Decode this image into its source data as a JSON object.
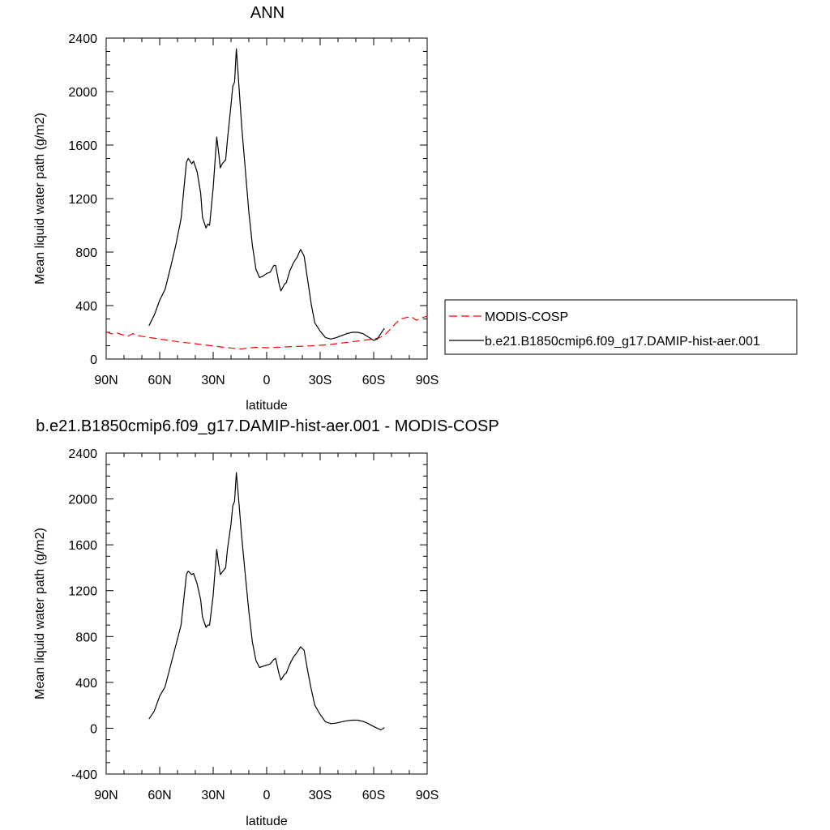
{
  "chart_data": [
    {
      "type": "line",
      "title": "ANN",
      "xlabel": "latitude",
      "ylabel": "Mean liquid water path (g/m2)",
      "xlim": [
        90,
        -90
      ],
      "ylim": [
        0,
        2400
      ],
      "xticks": [
        {
          "value": 90,
          "label": "90N"
        },
        {
          "value": 60,
          "label": "60N"
        },
        {
          "value": 30,
          "label": "30N"
        },
        {
          "value": 0,
          "label": "0"
        },
        {
          "value": -30,
          "label": "30S"
        },
        {
          "value": -60,
          "label": "60S"
        },
        {
          "value": -90,
          "label": "90S"
        }
      ],
      "yticks": [
        0,
        400,
        800,
        1200,
        1600,
        2000,
        2400
      ],
      "grid": false,
      "legend_position": "right",
      "series": [
        {
          "name": "MODIS-COSP",
          "color": "#ff0000",
          "dash": "dashed",
          "points": [
            [
              90,
              205
            ],
            [
              87,
              188
            ],
            [
              84,
              195
            ],
            [
              81,
              182
            ],
            [
              78,
              170
            ],
            [
              75,
              190
            ],
            [
              72,
              175
            ],
            [
              69,
              168
            ],
            [
              66,
              162
            ],
            [
              60,
              150
            ],
            [
              54,
              138
            ],
            [
              48,
              126
            ],
            [
              42,
              118
            ],
            [
              36,
              108
            ],
            [
              30,
              98
            ],
            [
              24,
              88
            ],
            [
              18,
              80
            ],
            [
              15,
              75
            ],
            [
              12,
              80
            ],
            [
              6,
              88
            ],
            [
              0,
              85
            ],
            [
              -6,
              88
            ],
            [
              -12,
              92
            ],
            [
              -18,
              95
            ],
            [
              -24,
              98
            ],
            [
              -30,
              103
            ],
            [
              -36,
              110
            ],
            [
              -42,
              120
            ],
            [
              -48,
              130
            ],
            [
              -54,
              140
            ],
            [
              -60,
              150
            ],
            [
              -63,
              158
            ],
            [
              -66,
              178
            ],
            [
              -69,
              218
            ],
            [
              -72,
              262
            ],
            [
              -75,
              300
            ],
            [
              -78,
              310
            ],
            [
              -81,
              318
            ],
            [
              -84,
              290
            ],
            [
              -87,
              310
            ],
            [
              -90,
              320
            ]
          ]
        },
        {
          "name": "b.e21.B1850cmip6.f09_g17.DAMIP-hist-aer.001",
          "color": "#000000",
          "dash": "solid",
          "points": [
            [
              66,
              250
            ],
            [
              63,
              330
            ],
            [
              60,
              440
            ],
            [
              57,
              520
            ],
            [
              54,
              680
            ],
            [
              51,
              850
            ],
            [
              48,
              1050
            ],
            [
              45,
              1470
            ],
            [
              44,
              1500
            ],
            [
              42,
              1460
            ],
            [
              41,
              1480
            ],
            [
              39,
              1400
            ],
            [
              37,
              1240
            ],
            [
              36,
              1060
            ],
            [
              34,
              980
            ],
            [
              33,
              1010
            ],
            [
              32,
              1000
            ],
            [
              30,
              1280
            ],
            [
              29,
              1470
            ],
            [
              28,
              1660
            ],
            [
              27,
              1550
            ],
            [
              26,
              1430
            ],
            [
              25,
              1460
            ],
            [
              23,
              1490
            ],
            [
              22,
              1640
            ],
            [
              20,
              1900
            ],
            [
              19,
              2040
            ],
            [
              18,
              2070
            ],
            [
              17,
              2320
            ],
            [
              16,
              2130
            ],
            [
              14,
              1740
            ],
            [
              12,
              1420
            ],
            [
              10,
              1100
            ],
            [
              8,
              850
            ],
            [
              6,
              670
            ],
            [
              4,
              610
            ],
            [
              2,
              620
            ],
            [
              0,
              640
            ],
            [
              -2,
              650
            ],
            [
              -4,
              700
            ],
            [
              -5,
              700
            ],
            [
              -7,
              560
            ],
            [
              -8,
              510
            ],
            [
              -10,
              560
            ],
            [
              -11,
              570
            ],
            [
              -13,
              660
            ],
            [
              -15,
              720
            ],
            [
              -17,
              760
            ],
            [
              -19,
              820
            ],
            [
              -21,
              770
            ],
            [
              -23,
              590
            ],
            [
              -25,
              410
            ],
            [
              -27,
              270
            ],
            [
              -30,
              210
            ],
            [
              -33,
              160
            ],
            [
              -36,
              150
            ],
            [
              -39,
              160
            ],
            [
              -42,
              175
            ],
            [
              -45,
              190
            ],
            [
              -48,
              200
            ],
            [
              -51,
              200
            ],
            [
              -54,
              190
            ],
            [
              -57,
              165
            ],
            [
              -60,
              140
            ],
            [
              -62,
              150
            ],
            [
              -64,
              190
            ],
            [
              -66,
              230
            ]
          ]
        }
      ]
    },
    {
      "type": "line",
      "title": "b.e21.B1850cmip6.f09_g17.DAMIP-hist-aer.001 - MODIS-COSP",
      "xlabel": "latitude",
      "ylabel": "Mean liquid water path (g/m2)",
      "xlim": [
        90,
        -90
      ],
      "ylim": [
        -400,
        2400
      ],
      "xticks": [
        {
          "value": 90,
          "label": "90N"
        },
        {
          "value": 60,
          "label": "60N"
        },
        {
          "value": 30,
          "label": "30N"
        },
        {
          "value": 0,
          "label": "0"
        },
        {
          "value": -30,
          "label": "30S"
        },
        {
          "value": -60,
          "label": "60S"
        },
        {
          "value": -90,
          "label": "90S"
        }
      ],
      "yticks": [
        -400,
        0,
        400,
        800,
        1200,
        1600,
        2000,
        2400
      ],
      "grid": false,
      "series": [
        {
          "color": "#000000",
          "dash": "solid",
          "points": [
            [
              66,
              80
            ],
            [
              63,
              150
            ],
            [
              60,
              280
            ],
            [
              57,
              360
            ],
            [
              54,
              540
            ],
            [
              51,
              720
            ],
            [
              48,
              900
            ],
            [
              45,
              1340
            ],
            [
              44,
              1370
            ],
            [
              42,
              1340
            ],
            [
              41,
              1350
            ],
            [
              39,
              1260
            ],
            [
              37,
              1120
            ],
            [
              36,
              970
            ],
            [
              34,
              880
            ],
            [
              33,
              900
            ],
            [
              32,
              900
            ],
            [
              30,
              1160
            ],
            [
              29,
              1360
            ],
            [
              28,
              1560
            ],
            [
              27,
              1440
            ],
            [
              26,
              1340
            ],
            [
              25,
              1360
            ],
            [
              23,
              1400
            ],
            [
              22,
              1560
            ],
            [
              20,
              1780
            ],
            [
              19,
              1940
            ],
            [
              18,
              1980
            ],
            [
              17,
              2230
            ],
            [
              16,
              2050
            ],
            [
              14,
              1670
            ],
            [
              12,
              1340
            ],
            [
              10,
              1020
            ],
            [
              8,
              750
            ],
            [
              6,
              590
            ],
            [
              4,
              530
            ],
            [
              2,
              540
            ],
            [
              0,
              550
            ],
            [
              -2,
              560
            ],
            [
              -4,
              600
            ],
            [
              -5,
              610
            ],
            [
              -7,
              470
            ],
            [
              -8,
              420
            ],
            [
              -10,
              470
            ],
            [
              -11,
              480
            ],
            [
              -13,
              560
            ],
            [
              -15,
              620
            ],
            [
              -17,
              660
            ],
            [
              -19,
              710
            ],
            [
              -21,
              680
            ],
            [
              -23,
              500
            ],
            [
              -25,
              340
            ],
            [
              -27,
              200
            ],
            [
              -30,
              120
            ],
            [
              -33,
              55
            ],
            [
              -36,
              40
            ],
            [
              -39,
              45
            ],
            [
              -42,
              55
            ],
            [
              -45,
              65
            ],
            [
              -48,
              70
            ],
            [
              -51,
              70
            ],
            [
              -54,
              60
            ],
            [
              -57,
              40
            ],
            [
              -60,
              15
            ],
            [
              -62,
              0
            ],
            [
              -64,
              -15
            ],
            [
              -66,
              5
            ]
          ]
        }
      ]
    }
  ]
}
